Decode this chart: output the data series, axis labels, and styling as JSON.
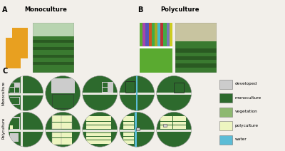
{
  "title_A": "Monoculture",
  "title_B": "Polyculture",
  "label_A": "A",
  "label_B": "B",
  "label_C": "C",
  "label_mono": "Monoculture",
  "label_poly": "Polyculture",
  "legend_items": [
    {
      "label": "developed",
      "color": "#cccccc"
    },
    {
      "label": "monoculture",
      "color": "#2d6a2d"
    },
    {
      "label": "vegetation",
      "color": "#8db870"
    },
    {
      "label": "polyculture",
      "color": "#edf5c0"
    },
    {
      "label": "water",
      "color": "#5bbcd6"
    }
  ],
  "mono_color": "#e8a020",
  "poly_colors": [
    "#5aaa30",
    "#aa44aa",
    "#5555bb",
    "#cc5522",
    "#44aa44",
    "#aaaa22",
    "#44bbcc",
    "#bb3333",
    "#44aa44",
    "#7777bb",
    "#cccc22"
  ],
  "bg_color": "#f2efea",
  "dark_green": "#2d6a2d",
  "light_green": "#8db870",
  "pale_yellow": "#edf5c0",
  "sky_blue": "#5bbcd6",
  "light_gray": "#cccccc",
  "white": "#f5f5f0",
  "road_color": "#e8e8e0"
}
